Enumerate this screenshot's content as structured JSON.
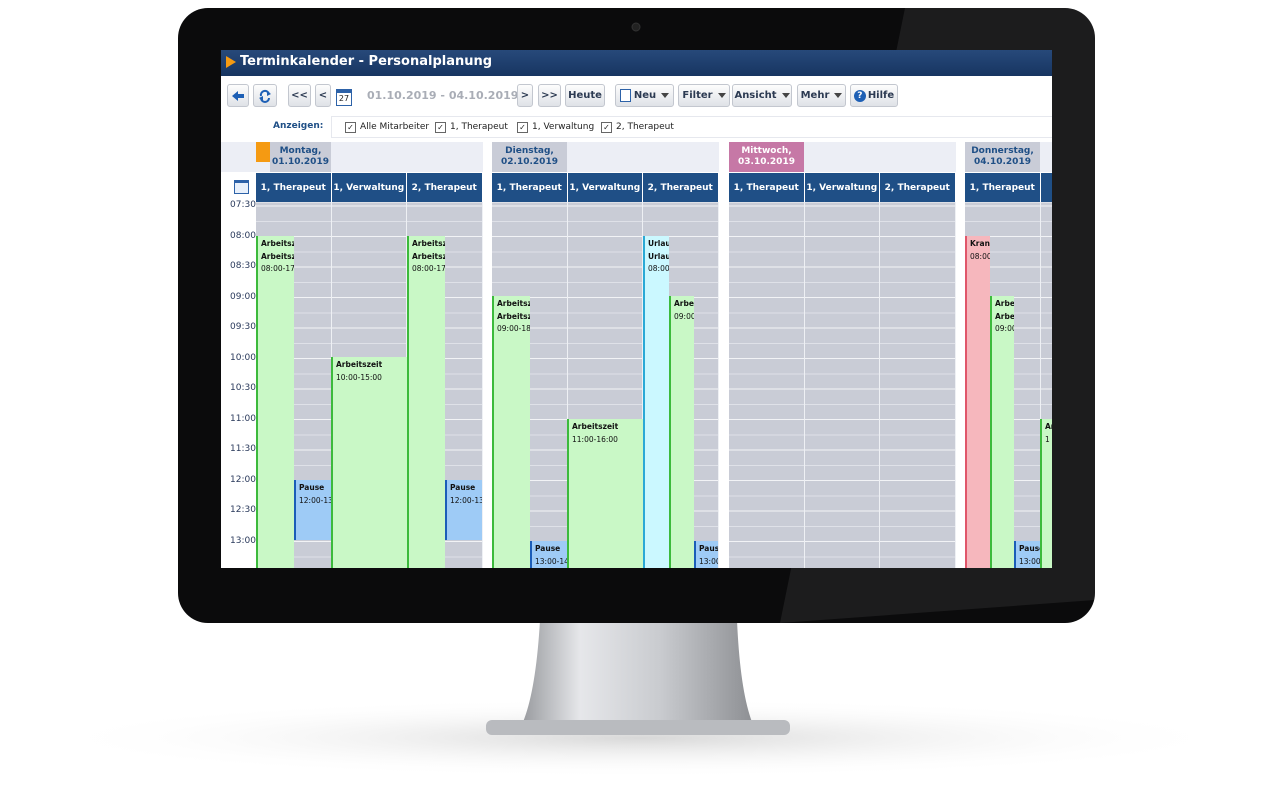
{
  "header": {
    "title": "Terminkalender - Personalplanung"
  },
  "toolbar": {
    "nav_left": [
      "<<",
      "<"
    ],
    "calendar_day": "27",
    "date_range": "01.10.2019 - 04.10.2019",
    "nav_right": [
      ">",
      ">>"
    ],
    "today": "Heute",
    "menus": [
      "Neu",
      "Filter",
      "Ansicht",
      "Mehr"
    ],
    "help": "Hilfe"
  },
  "filter": {
    "label": "Anzeigen:",
    "options": [
      "Alle Mitarbeiter",
      "1, Therapeut",
      "1, Verwaltung",
      "2, Therapeut"
    ]
  },
  "calendar": {
    "times": [
      "07:30",
      "08:00",
      "08:30",
      "09:00",
      "09:30",
      "10:00",
      "10:30",
      "11:00",
      "11:30",
      "12:00",
      "12:30",
      "13:00"
    ],
    "days": [
      {
        "name": "Montag,",
        "date": "01.10.2019",
        "columns": [
          "1, Therapeut",
          "1, Verwaltung",
          "2, Therapeut"
        ],
        "events": [
          [
            "Arbeitszei",
            "Arbeitszei",
            "08:00-17:0"
          ],
          [
            "Pause",
            "12:00-13:0"
          ],
          [
            "Arbeitszeit",
            "10:00-15:00"
          ],
          [
            "Arbeitszei",
            "Arbeitszei",
            "08:00-17:0"
          ],
          [
            "Pause",
            "12:00-13:0"
          ]
        ]
      },
      {
        "name": "Dienstag,",
        "date": "02.10.2019",
        "columns": [
          "1, Therapeut",
          "1, Verwaltung",
          "2, Therapeut"
        ],
        "events": [
          [
            "Arbeitszei",
            "Arbeitszei",
            "09:00-18:0"
          ],
          [
            "Pause",
            "13:00-14:0"
          ],
          [
            "Arbeitszeit",
            "11:00-16:00"
          ],
          [
            "Urlaul",
            "Urlaul",
            "08:00-"
          ],
          [
            "Arbeit",
            "09:00-"
          ],
          [
            "Pause",
            "13:00-"
          ]
        ]
      },
      {
        "name": "Mittwoch,",
        "date": "03.10.2019",
        "columns": [
          "1, Therapeut",
          "1, Verwaltung",
          "2, Therapeut"
        ],
        "events": []
      },
      {
        "name": "Donnerstag,",
        "date": "04.10.2019",
        "columns": [
          "1, Therapeut",
          "1"
        ],
        "events": [
          [
            "Krank",
            "08:00-"
          ],
          [
            "Arbeit",
            "Arbeit",
            "09:00-"
          ],
          [
            "Pause",
            "13:00-"
          ],
          [
            "Ar",
            "1"
          ]
        ]
      }
    ]
  }
}
